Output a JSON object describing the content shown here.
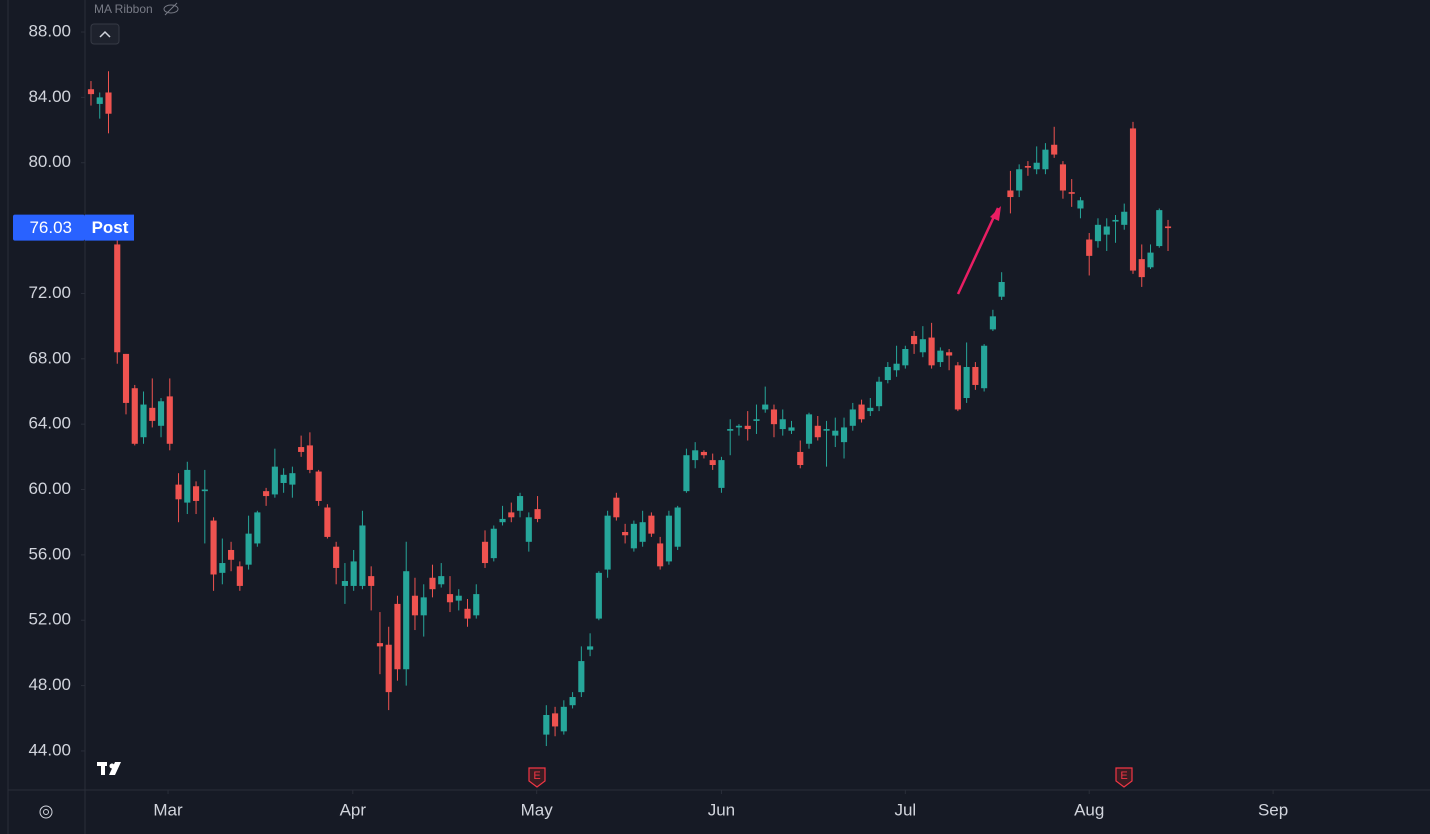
{
  "chart_data": {
    "type": "candlestick",
    "indicator": "MA Ribbon",
    "up_color": "#26a69a",
    "down_color": "#ef5350",
    "open": [
      84.5,
      83.6,
      84.3,
      75.0,
      68.3,
      66.2,
      63.2,
      65.0,
      63.9,
      65.7,
      60.3,
      59.2,
      60.2,
      59.9,
      58.1,
      54.9,
      56.3,
      55.3,
      55.4,
      56.7,
      59.9,
      59.7,
      60.4,
      60.3,
      62.6,
      62.7,
      61.1,
      58.9,
      56.5,
      54.1,
      54.1,
      54.1,
      54.7,
      50.6,
      50.5,
      53.0,
      49.0,
      53.5,
      52.3,
      54.6,
      54.2,
      53.6,
      53.2,
      52.7,
      52.3,
      56.8,
      55.8,
      58.0,
      58.6,
      58.7,
      56.8,
      58.8,
      45.0,
      46.3,
      45.2,
      46.8,
      47.6,
      50.2,
      52.1,
      55.1,
      59.5,
      57.4,
      56.4,
      56.8,
      58.4,
      56.7,
      55.6,
      56.5,
      59.9,
      61.8,
      62.3,
      61.8,
      60.1,
      63.6,
      63.8,
      63.9,
      64.2,
      64.9,
      64.9,
      63.7,
      63.6,
      62.3,
      62.8,
      63.9,
      63.6,
      63.3,
      62.9,
      63.9,
      65.2,
      64.8,
      65.1,
      66.7,
      67.3,
      67.6,
      69.4,
      68.4,
      69.3,
      67.8,
      68.4,
      67.6,
      65.6,
      67.5,
      66.2,
      69.8,
      71.8,
      78.3,
      78.3,
      79.8,
      79.6,
      79.6,
      81.1,
      79.9,
      78.2,
      77.2,
      75.3,
      75.2,
      75.6,
      76.4,
      76.2,
      82.1,
      74.1,
      73.6,
      74.9,
      76.1
    ],
    "high": [
      85.0,
      84.3,
      85.6,
      75.5,
      68.3,
      66.4,
      66.0,
      66.8,
      65.6,
      66.8,
      61.0,
      61.7,
      60.5,
      61.2,
      58.3,
      57.0,
      56.8,
      55.6,
      58.4,
      58.7,
      60.1,
      62.5,
      61.3,
      61.4,
      63.3,
      63.5,
      61.2,
      59.1,
      56.8,
      55.5,
      56.3,
      58.7,
      55.3,
      52.5,
      51.6,
      53.5,
      56.8,
      54.6,
      54.2,
      55.4,
      55.5,
      54.7,
      53.9,
      53.3,
      54.2,
      57.5,
      57.8,
      59.0,
      59.2,
      59.8,
      58.6,
      59.6,
      46.8,
      46.7,
      47.1,
      47.6,
      50.4,
      51.2,
      55.0,
      58.7,
      59.8,
      57.9,
      58.1,
      58.7,
      58.6,
      57.1,
      58.7,
      59.0,
      62.5,
      62.9,
      62.4,
      62.2,
      62.0,
      64.3,
      64.0,
      64.8,
      65.2,
      66.3,
      65.2,
      64.9,
      64.2,
      63.0,
      64.7,
      64.5,
      64.2,
      64.4,
      64.4,
      65.3,
      65.5,
      65.6,
      66.9,
      67.8,
      68.8,
      68.8,
      69.7,
      70.0,
      70.2,
      68.7,
      68.6,
      67.8,
      69.0,
      67.8,
      68.9,
      71.0,
      73.3,
      79.5,
      79.9,
      80.1,
      81.0,
      81.2,
      82.2,
      80.1,
      79.0,
      77.9,
      75.7,
      76.6,
      76.6,
      76.8,
      77.5,
      82.5,
      75.0,
      75.0,
      77.2,
      76.5
    ],
    "low": [
      83.5,
      82.7,
      81.8,
      67.7,
      64.6,
      62.7,
      62.8,
      63.8,
      63.2,
      62.4,
      58.0,
      58.5,
      58.5,
      56.7,
      53.8,
      54.2,
      55.0,
      53.8,
      55.1,
      56.5,
      59.0,
      59.5,
      59.8,
      59.5,
      62.0,
      61.0,
      59.0,
      57.0,
      54.2,
      53.0,
      53.8,
      53.9,
      52.6,
      48.7,
      46.5,
      48.3,
      48.0,
      51.4,
      51.0,
      53.4,
      54.0,
      52.5,
      52.6,
      51.6,
      52.1,
      55.2,
      55.6,
      57.8,
      58.0,
      58.3,
      56.2,
      58.0,
      44.3,
      44.9,
      45.0,
      46.6,
      47.3,
      49.8,
      52.0,
      54.6,
      58.1,
      56.7,
      56.2,
      56.5,
      57.1,
      55.1,
      55.4,
      56.3,
      59.8,
      61.3,
      61.9,
      61.2,
      59.8,
      62.1,
      63.3,
      63.0,
      63.4,
      64.7,
      63.2,
      63.3,
      63.4,
      61.3,
      62.5,
      63.0,
      61.4,
      62.6,
      61.9,
      63.6,
      64.1,
      64.5,
      64.8,
      66.5,
      66.9,
      67.4,
      68.3,
      68.1,
      67.4,
      67.5,
      67.3,
      64.8,
      65.3,
      66.1,
      66.0,
      69.7,
      71.6,
      76.9,
      77.9,
      79.2,
      79.3,
      79.3,
      80.3,
      77.8,
      77.3,
      76.6,
      73.1,
      74.8,
      74.6,
      75.1,
      75.9,
      73.2,
      72.4,
      73.5,
      74.8,
      74.6
    ],
    "close": [
      84.2,
      84.0,
      83.0,
      68.4,
      65.3,
      62.8,
      65.2,
      64.2,
      65.4,
      62.8,
      59.4,
      61.2,
      59.3,
      60.0,
      54.8,
      55.5,
      55.7,
      54.1,
      57.3,
      58.6,
      59.6,
      61.4,
      60.9,
      61.0,
      62.3,
      61.2,
      59.3,
      57.1,
      55.2,
      54.4,
      55.6,
      57.8,
      54.1,
      50.4,
      47.6,
      49.0,
      55.0,
      52.3,
      53.4,
      53.9,
      54.7,
      53.1,
      53.5,
      52.1,
      53.6,
      55.5,
      57.6,
      58.2,
      58.3,
      59.6,
      58.3,
      58.2,
      46.2,
      45.5,
      46.7,
      47.3,
      49.5,
      50.4,
      54.9,
      58.4,
      58.3,
      57.2,
      57.9,
      58.0,
      57.3,
      55.3,
      58.4,
      58.9,
      62.1,
      62.4,
      62.1,
      61.5,
      61.8,
      63.7,
      63.9,
      63.7,
      64.3,
      65.2,
      64.0,
      64.3,
      63.8,
      61.5,
      64.6,
      63.2,
      63.7,
      63.6,
      63.8,
      64.9,
      64.3,
      65.0,
      66.6,
      67.5,
      67.7,
      68.6,
      68.9,
      69.2,
      67.6,
      68.5,
      68.2,
      64.9,
      67.5,
      66.4,
      68.8,
      70.6,
      72.7,
      77.9,
      79.6,
      79.7,
      80.0,
      80.8,
      80.5,
      78.3,
      78.1,
      77.7,
      74.3,
      76.2,
      76.1,
      76.5,
      77.0,
      73.4,
      73.0,
      74.5,
      77.1,
      76.0
    ],
    "ylim": [
      41.61,
      89.96
    ],
    "yticks": [
      {
        "value": 44,
        "label": "44.00"
      },
      {
        "value": 48,
        "label": "48.00"
      },
      {
        "value": 52,
        "label": "52.00"
      },
      {
        "value": 56,
        "label": "56.00"
      },
      {
        "value": 60,
        "label": "60.00"
      },
      {
        "value": 64,
        "label": "64.00"
      },
      {
        "value": 68,
        "label": "68.00"
      },
      {
        "value": 72,
        "label": "72.00"
      },
      {
        "value": 76,
        "label": "76.00"
      },
      {
        "value": 80,
        "label": "80.00"
      },
      {
        "value": 84,
        "label": "84.00"
      },
      {
        "value": 88,
        "label": "88.00"
      }
    ],
    "xlim": [
      -10.39,
      148.35
    ],
    "xticks": [
      {
        "value": 8.8,
        "label": "Mar"
      },
      {
        "value": 29.9,
        "label": "Apr"
      },
      {
        "value": 50.9,
        "label": "May"
      },
      {
        "value": 72.0,
        "label": "Jun"
      },
      {
        "value": 93.0,
        "label": "Jul"
      },
      {
        "value": 114.0,
        "label": "Aug"
      },
      {
        "value": 135.0,
        "label": "Sep"
      }
    ],
    "last_price": 76.03,
    "last_price_session": "Post",
    "last_price_color": "#2962ff",
    "earnings_markers": [
      "E",
      "E"
    ]
  }
}
